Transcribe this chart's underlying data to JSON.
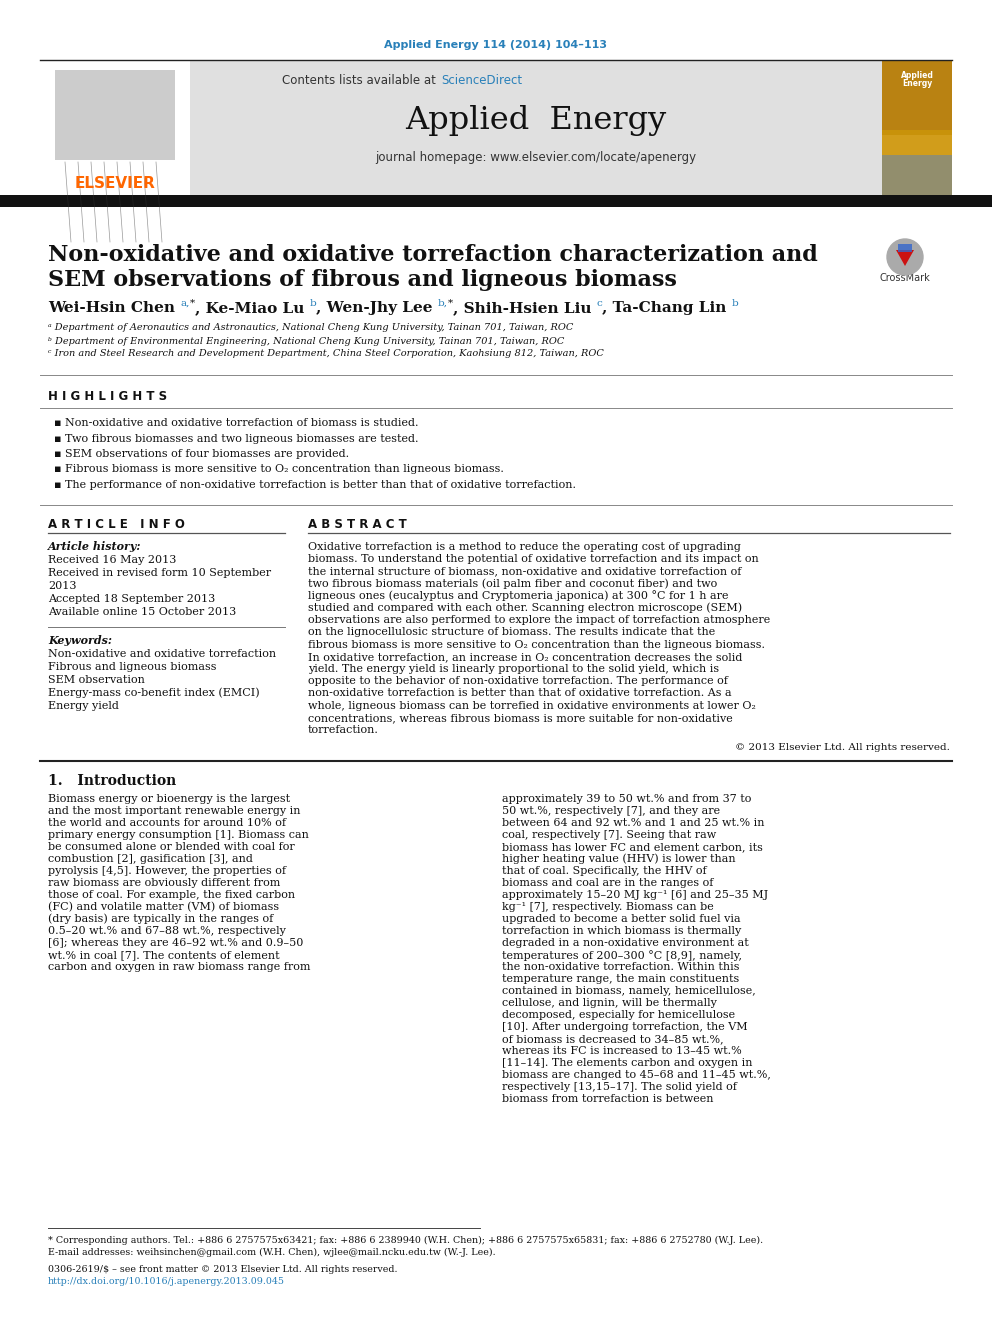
{
  "journal_ref": "Applied Energy 114 (2014) 104–113",
  "journal_ref_color": "#2980b9",
  "contents_line": "Contents lists available at ",
  "sciencedirect": "ScienceDirect",
  "sciencedirect_color": "#2980b9",
  "journal_name": "Applied  Energy",
  "journal_homepage": "journal homepage: www.elsevier.com/locate/apenergy",
  "elsevier_color": "#FF6600",
  "paper_title_line1": "Non-oxidative and oxidative torrefaction characterization and",
  "paper_title_line2": "SEM observations of fibrous and ligneous biomass",
  "affil_a": "ᵃ Department of Aeronautics and Astronautics, National Cheng Kung University, Tainan 701, Taiwan, ROC",
  "affil_b": "ᵇ Department of Environmental Engineering, National Cheng Kung University, Tainan 701, Taiwan, ROC",
  "affil_c": "ᶜ Iron and Steel Research and Development Department, China Steel Corporation, Kaohsiung 812, Taiwan, ROC",
  "highlights_title": "H I G H L I G H T S",
  "highlights": [
    "Non-oxidative and oxidative torrefaction of biomass is studied.",
    "Two fibrous biomasses and two ligneous biomasses are tested.",
    "SEM observations of four biomasses are provided.",
    "Fibrous biomass is more sensitive to O₂ concentration than ligneous biomass.",
    "The performance of non-oxidative torrefaction is better than that of oxidative torrefaction."
  ],
  "article_info_title": "A R T I C L E   I N F O",
  "abstract_title": "A B S T R A C T",
  "article_history_label": "Article history:",
  "received": "Received 16 May 2013",
  "revised_1": "Received in revised form 10 September",
  "revised_2": "2013",
  "accepted": "Accepted 18 September 2013",
  "available": "Available online 15 October 2013",
  "keywords_label": "Keywords:",
  "keywords": [
    "Non-oxidative and oxidative torrefaction",
    "Fibrous and ligneous biomass",
    "SEM observation",
    "Energy-mass co-benefit index (EMCI)",
    "Energy yield"
  ],
  "abstract_text": "Oxidative torrefaction is a method to reduce the operating cost of upgrading biomass. To understand the potential of oxidative torrefaction and its impact on the internal structure of biomass, non-oxidative and oxidative torrefaction of two fibrous biomass materials (oil palm fiber and coconut fiber) and two ligneous ones (eucalyptus and Cryptomeria japonica) at 300 °C for 1 h are studied and compared with each other. Scanning electron microscope (SEM) observations are also performed to explore the impact of torrefaction atmosphere on the lignocellulosic structure of biomass. The results indicate that the fibrous biomass is more sensitive to O₂ concentration than the ligneous biomass. In oxidative torrefaction, an increase in O₂ concentration decreases the solid yield. The energy yield is linearly proportional to the solid yield, which is opposite to the behavior of non-oxidative torrefaction. The performance of non-oxidative torrefaction is better than that of oxidative torrefaction. As a whole, ligneous biomass can be torrefied in oxidative environments at lower O₂ concentrations, whereas fibrous biomass is more suitable for non-oxidative torrefaction.",
  "copyright": "© 2013 Elsevier Ltd. All rights reserved.",
  "intro_title": "1.   Introduction",
  "intro_col1": "Biomass energy or bioenergy is the largest and the most important renewable energy in the world and accounts for around 10% of primary energy consumption [1]. Biomass can be consumed alone or blended with coal for combustion [2], gasification [3], and pyrolysis [4,5]. However, the properties of raw biomass are obviously different from those of coal. For example, the fixed carbon (FC) and volatile matter (VM) of biomass (dry basis) are typically in the ranges of 0.5–20 wt.% and 67–88 wt.%, respectively [6]; whereas they are 46–92 wt.% and 0.9–50 wt.% in coal [7]. The contents of element carbon and oxygen in raw biomass range from",
  "intro_col2": "approximately 39 to 50 wt.% and from 37 to 50 wt.%, respectively [7], and they are between 64 and 92 wt.% and 1 and 25 wt.% in coal, respectively [7]. Seeing that raw biomass has lower FC and element carbon, its higher heating value (HHV) is lower than that of coal. Specifically, the HHV of biomass and coal are in the ranges of approximately 15–20 MJ kg⁻¹ [6] and 25–35 MJ kg⁻¹ [7], respectively.\n\nBiomass can be upgraded to become a better solid fuel via torrefaction in which biomass is thermally degraded in a non-oxidative environment at temperatures of 200–300 °C [8,9], namely, the non-oxidative torrefaction. Within this temperature range, the main constituents contained in biomass, namely, hemicellulose, cellulose, and lignin, will be thermally decomposed, especially for hemicellulose [10]. After undergoing torrefaction, the VM of biomass is decreased to 34–85 wt.%, whereas its FC is increased to 13–45 wt.% [11–14]. The elements carbon and oxygen in biomass are changed to 45–68 and 11–45 wt.%, respectively [13,15–17]. The solid yield of biomass from torrefaction is between",
  "footer_note_1": "* Corresponding authors. Tel.: +886 6 2757575x63421; fax: +886 6 2389940 (W.H. Chen); +886 6 2757575x65831; fax: +886 6 2752780 (W.J. Lee).",
  "footer_note_2": "E-mail addresses: weihsinchen@gmail.com (W.H. Chen), wjlee@mail.ncku.edu.tw (W.-J. Lee).",
  "issn_text": "0306-2619/$ – see front matter © 2013 Elsevier Ltd. All rights reserved.",
  "doi_text": "http://dx.doi.org/10.1016/j.apenergy.2013.09.045",
  "doi_color": "#2980b9",
  "bg_header_color": "#e0e0e0",
  "black_bar_color": "#111111",
  "text_color": "#000000"
}
